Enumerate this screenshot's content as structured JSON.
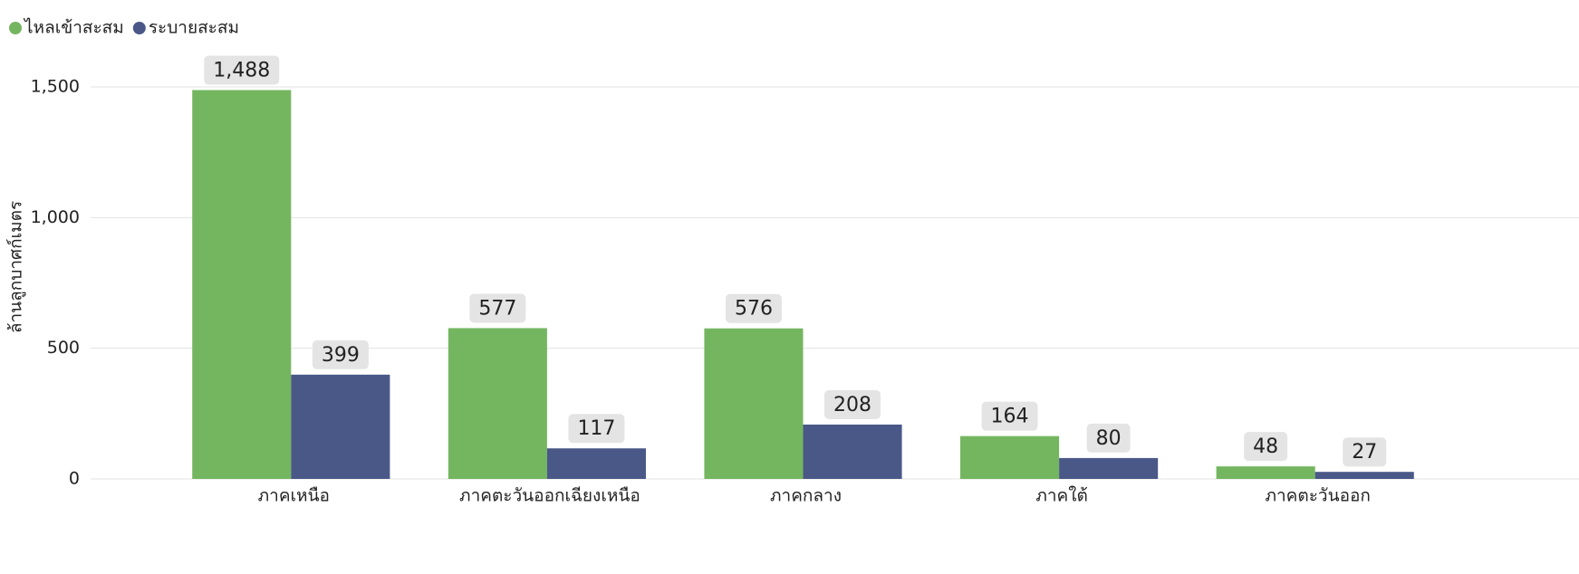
{
  "chart_data": {
    "type": "bar",
    "y_label": "ล้านลูกบาศก์เมตร",
    "categories": [
      "ภาคเหนือ",
      "ภาคตะวันออกเฉียงเหนือ",
      "ภาคกลาง",
      "ภาคใต้",
      "ภาคตะวันออก"
    ],
    "series": [
      {
        "name": "ไหลเข้าสะสม",
        "color": "#74b660",
        "values": [
          1488,
          577,
          576,
          164,
          48
        ],
        "value_labels": [
          "1,488",
          "577",
          "576",
          "164",
          "48"
        ]
      },
      {
        "name": "ระบายสะสม",
        "color": "#4a5888",
        "values": [
          399,
          117,
          208,
          80,
          27
        ],
        "value_labels": [
          "399",
          "117",
          "208",
          "80",
          "27"
        ]
      }
    ],
    "ylim": [
      0,
      1500
    ],
    "yticks": [
      0,
      500,
      {
        "value": 1000,
        "label": "1,000"
      },
      {
        "value": 1500,
        "label": "1,500"
      }
    ],
    "grid": true,
    "legend": "top-left"
  }
}
